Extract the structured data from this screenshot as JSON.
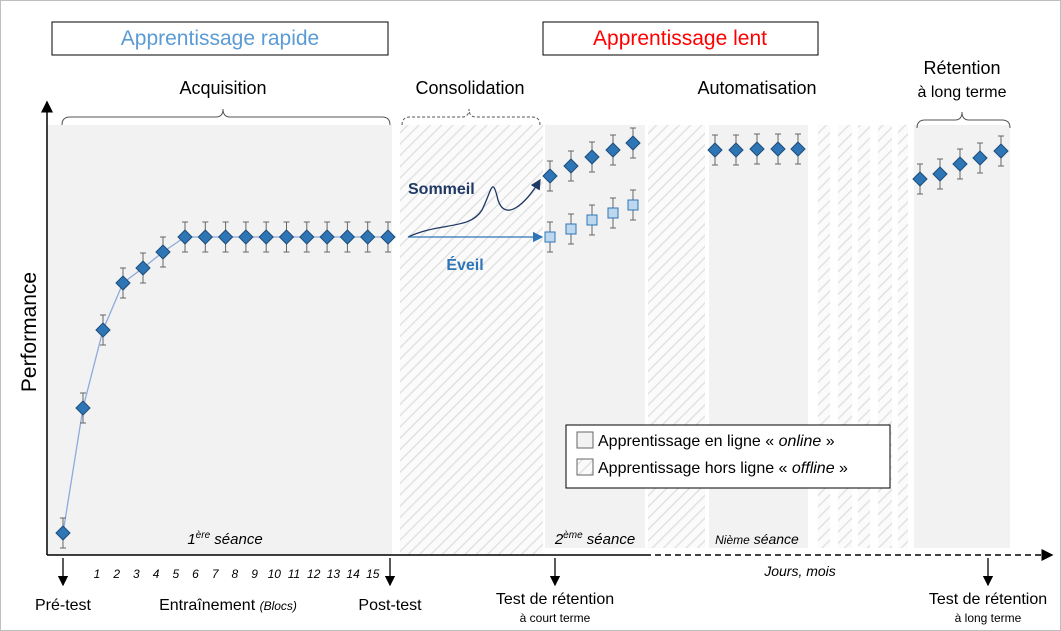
{
  "header": {
    "fast": "Apprentissage rapide",
    "slow": "Apprentissage lent"
  },
  "phases": {
    "acquisition": "Acquisition",
    "consolidation": "Consolidation",
    "automatisation": "Automatisation",
    "retention": [
      "Rétention",
      "à long terme"
    ]
  },
  "axis": {
    "y": "Performance",
    "time": "Jours, mois"
  },
  "arrows": {
    "sleep": "Sommeil",
    "wake": "Éveil"
  },
  "sessions": {
    "first": [
      "1",
      "ère",
      " séance"
    ],
    "second": [
      "2",
      "ème",
      " séance"
    ],
    "nth": [
      "Nième",
      " séance"
    ]
  },
  "blocks": [
    1,
    2,
    3,
    4,
    5,
    6,
    7,
    8,
    9,
    10,
    11,
    12,
    13,
    14,
    15
  ],
  "bottom": {
    "pretest": "Pré-test",
    "training": "Entraînement ",
    "training_unit": "(Blocs)",
    "posttest": "Post-test",
    "short_test": [
      "Test de rétention",
      "à court terme"
    ],
    "long_test": [
      "Test de rétention",
      "à long terme"
    ]
  },
  "legend": {
    "online": [
      "Apprentissage en ligne « ",
      "online",
      " »"
    ],
    "offline": [
      "Apprentissage hors ligne « ",
      "offline",
      " »"
    ]
  }
}
